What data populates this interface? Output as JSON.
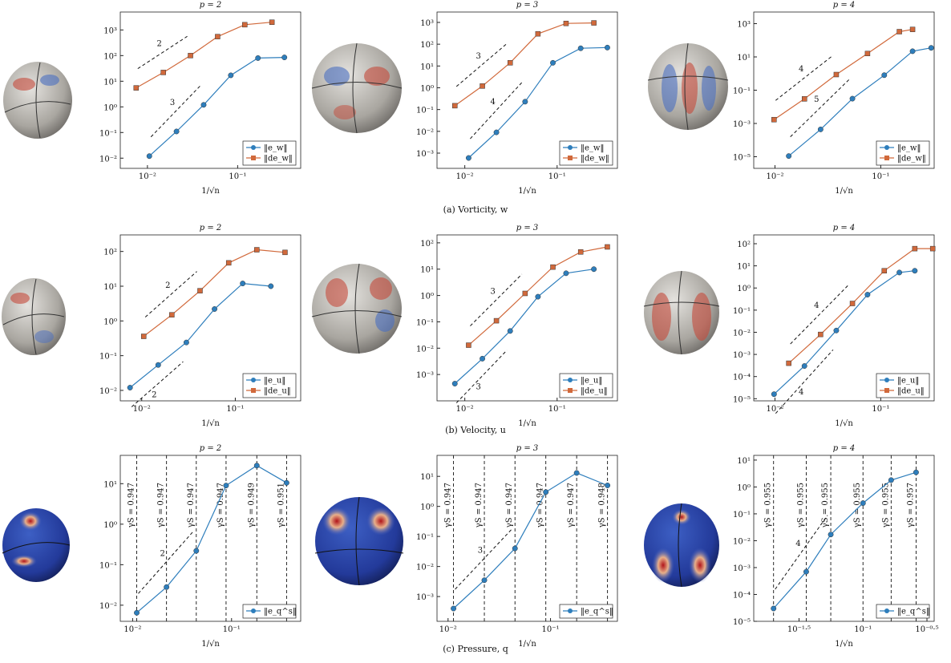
{
  "chart_data": [
    {
      "type": "line",
      "title": "p = 2",
      "x_label": "1/√n",
      "log_x": true,
      "log_y": true,
      "xlim": [
        0.005,
        0.5
      ],
      "xticks": [
        {
          "value": 0.01,
          "label": "10⁻²"
        },
        {
          "value": 0.1,
          "label": "10⁻¹"
        }
      ],
      "ylim": [
        0.004,
        5000
      ],
      "yticks": [
        {
          "value": 0.01,
          "label": "10⁻²"
        },
        {
          "value": 0.1,
          "label": "10⁻¹"
        },
        {
          "value": 1,
          "label": "10⁰"
        },
        {
          "value": 10,
          "label": "10¹"
        },
        {
          "value": 100,
          "label": "10²"
        },
        {
          "value": 1000,
          "label": "10³"
        }
      ],
      "series": [
        {
          "name": "‖e_w‖",
          "color": "#2e7ebc",
          "marker": "circle",
          "x": [
            0.0105,
            0.021,
            0.042,
            0.084,
            0.168,
            0.33
          ],
          "values": [
            0.012,
            0.11,
            1.2,
            17,
            80,
            85
          ]
        },
        {
          "name": "‖de_w‖",
          "color": "#d1693b",
          "marker": "square",
          "x": [
            0.0075,
            0.015,
            0.03,
            0.06,
            0.12,
            0.24
          ],
          "values": [
            5.5,
            22,
            100,
            550,
            1600,
            2000
          ]
        }
      ],
      "annotations": [
        "2",
        "3"
      ]
    },
    {
      "type": "line",
      "title": "p = 3",
      "x_label": "1/√n",
      "log_x": true,
      "log_y": true,
      "xlim": [
        0.005,
        0.45
      ],
      "xticks": [
        {
          "value": 0.01,
          "label": "10⁻²"
        },
        {
          "value": 0.1,
          "label": "10⁻¹"
        }
      ],
      "ylim": [
        0.0002,
        3000
      ],
      "yticks": [
        {
          "value": 0.001,
          "label": "10⁻³"
        },
        {
          "value": 0.01,
          "label": "10⁻²"
        },
        {
          "value": 0.1,
          "label": "10⁻¹"
        },
        {
          "value": 1,
          "label": "10⁰"
        },
        {
          "value": 10,
          "label": "10¹"
        },
        {
          "value": 100,
          "label": "10²"
        },
        {
          "value": 1000,
          "label": "10³"
        }
      ],
      "series": [
        {
          "name": "‖e_w‖",
          "color": "#2e7ebc",
          "marker": "circle",
          "x": [
            0.011,
            0.022,
            0.045,
            0.09,
            0.18,
            0.35
          ],
          "values": [
            0.0006,
            0.009,
            0.23,
            14,
            65,
            70
          ]
        },
        {
          "name": "‖de_w‖",
          "color": "#d1693b",
          "marker": "square",
          "x": [
            0.0078,
            0.0155,
            0.031,
            0.062,
            0.125,
            0.25
          ],
          "values": [
            0.15,
            1.2,
            14,
            300,
            900,
            950
          ]
        }
      ],
      "annotations": [
        "3",
        "4"
      ]
    },
    {
      "type": "line",
      "title": "p = 4",
      "x_label": "1/√n",
      "log_x": true,
      "log_y": true,
      "xlim": [
        0.0063,
        0.32
      ],
      "xticks": [
        {
          "value": 0.01,
          "label": "10⁻²"
        },
        {
          "value": 0.1,
          "label": "10⁻¹"
        }
      ],
      "ylim": [
        2e-06,
        5000
      ],
      "yticks": [
        {
          "value": 1e-05,
          "label": "10⁻⁵"
        },
        {
          "value": 0.001,
          "label": "10⁻³"
        },
        {
          "value": 0.1,
          "label": "10⁻¹"
        },
        {
          "value": 10,
          "label": "10¹"
        },
        {
          "value": 1000,
          "label": "10³"
        }
      ],
      "series": [
        {
          "name": "‖e_w‖",
          "color": "#2e7ebc",
          "marker": "circle",
          "x": [
            0.0135,
            0.027,
            0.054,
            0.108,
            0.2,
            0.3
          ],
          "values": [
            1.1e-05,
            0.00044,
            0.031,
            0.8,
            22,
            35
          ]
        },
        {
          "name": "‖de_w‖",
          "color": "#d1693b",
          "marker": "square",
          "x": [
            0.0098,
            0.019,
            0.038,
            0.075,
            0.15,
            0.2
          ],
          "values": [
            0.0017,
            0.03,
            0.87,
            16,
            330,
            450
          ]
        }
      ],
      "annotations": [
        "4",
        "5"
      ]
    },
    {
      "type": "line",
      "title": "p = 2",
      "x_label": "1/√n",
      "log_x": true,
      "log_y": true,
      "xlim": [
        0.0059,
        0.5
      ],
      "xticks": [
        {
          "value": 0.01,
          "label": "10⁻²"
        },
        {
          "value": 0.1,
          "label": "10⁻¹"
        }
      ],
      "ylim": [
        0.005,
        300
      ],
      "yticks": [
        {
          "value": 0.01,
          "label": "10⁻²"
        },
        {
          "value": 0.1,
          "label": "10⁻¹"
        },
        {
          "value": 1,
          "label": "10⁰"
        },
        {
          "value": 10,
          "label": "10¹"
        },
        {
          "value": 100,
          "label": "10²"
        }
      ],
      "series": [
        {
          "name": "‖e_u‖",
          "color": "#2e7ebc",
          "marker": "circle",
          "x": [
            0.0075,
            0.015,
            0.03,
            0.06,
            0.12,
            0.24
          ],
          "values": [
            0.012,
            0.054,
            0.24,
            2.2,
            12,
            10
          ]
        },
        {
          "name": "‖de_u‖",
          "color": "#d1693b",
          "marker": "square",
          "x": [
            0.0105,
            0.021,
            0.042,
            0.085,
            0.17,
            0.34
          ],
          "values": [
            0.36,
            1.5,
            7.4,
            47,
            112,
            94
          ]
        }
      ],
      "annotations": [
        "2",
        "2"
      ]
    },
    {
      "type": "line",
      "title": "p = 3",
      "x_label": "1/√n",
      "log_x": true,
      "log_y": true,
      "xlim": [
        0.005,
        0.45
      ],
      "xticks": [
        {
          "value": 0.01,
          "label": "10⁻²"
        },
        {
          "value": 0.1,
          "label": "10⁻¹"
        }
      ],
      "ylim": [
        0.0001,
        200
      ],
      "yticks": [
        {
          "value": 0.001,
          "label": "10⁻³"
        },
        {
          "value": 0.01,
          "label": "10⁻²"
        },
        {
          "value": 0.1,
          "label": "10⁻¹"
        },
        {
          "value": 1,
          "label": "10⁰"
        },
        {
          "value": 10,
          "label": "10¹"
        },
        {
          "value": 100,
          "label": "10²"
        }
      ],
      "series": [
        {
          "name": "‖e_u‖",
          "color": "#2e7ebc",
          "marker": "circle",
          "x": [
            0.0078,
            0.0155,
            0.031,
            0.062,
            0.125,
            0.25
          ],
          "values": [
            0.00045,
            0.004,
            0.045,
            0.9,
            7,
            10
          ]
        },
        {
          "name": "‖de_u‖",
          "color": "#d1693b",
          "marker": "square",
          "x": [
            0.011,
            0.022,
            0.045,
            0.09,
            0.18,
            0.35
          ],
          "values": [
            0.013,
            0.11,
            1.2,
            12,
            45,
            70
          ]
        }
      ],
      "annotations": [
        "3",
        "3"
      ]
    },
    {
      "type": "line",
      "title": "p = 4",
      "x_label": "1/√n",
      "log_x": true,
      "log_y": true,
      "xlim": [
        0.0063,
        0.32
      ],
      "xticks": [
        {
          "value": 0.01,
          "label": "10⁻²"
        },
        {
          "value": 0.1,
          "label": "10⁻¹"
        }
      ],
      "ylim": [
        8e-06,
        250
      ],
      "yticks": [
        {
          "value": 1e-05,
          "label": "10⁻⁵"
        },
        {
          "value": 0.0001,
          "label": "10⁻⁴"
        },
        {
          "value": 0.001,
          "label": "10⁻³"
        },
        {
          "value": 0.01,
          "label": "10⁻²"
        },
        {
          "value": 0.1,
          "label": "10⁻¹"
        },
        {
          "value": 1,
          "label": "10⁰"
        },
        {
          "value": 10,
          "label": "10¹"
        },
        {
          "value": 100,
          "label": "10²"
        }
      ],
      "series": [
        {
          "name": "‖e_u‖",
          "color": "#2e7ebc",
          "marker": "circle",
          "x": [
            0.0098,
            0.019,
            0.038,
            0.075,
            0.15,
            0.21
          ],
          "values": [
            1.6e-05,
            0.0003,
            0.012,
            0.5,
            5,
            6
          ]
        },
        {
          "name": "‖de_u‖",
          "color": "#d1693b",
          "marker": "square",
          "x": [
            0.0135,
            0.027,
            0.054,
            0.108,
            0.21,
            0.31
          ],
          "values": [
            0.0004,
            0.008,
            0.2,
            6,
            60,
            60
          ]
        }
      ],
      "annotations": [
        "4",
        "4"
      ]
    },
    {
      "type": "line",
      "title": "p = 2",
      "x_label": "1/√n",
      "log_x": true,
      "log_y": true,
      "xlim": [
        0.0075,
        0.5
      ],
      "xticks": [
        {
          "value": 0.01,
          "label": "10⁻²"
        },
        {
          "value": 0.1,
          "label": "10⁻¹"
        }
      ],
      "ylim": [
        0.004,
        50
      ],
      "yticks": [
        {
          "value": 0.01,
          "label": "10⁻²"
        },
        {
          "value": 0.1,
          "label": "10⁻¹"
        },
        {
          "value": 1,
          "label": "10⁰"
        },
        {
          "value": 10,
          "label": "10¹"
        }
      ],
      "series": [
        {
          "name": "‖e_q^s‖",
          "color": "#2e7ebc",
          "marker": "circle",
          "x": [
            0.011,
            0.022,
            0.044,
            0.088,
            0.18,
            0.36
          ],
          "values": [
            0.0065,
            0.028,
            0.22,
            9,
            28,
            10.5
          ]
        }
      ],
      "vlines": [
        {
          "value": 0.011,
          "label": "γS = 0.947"
        },
        {
          "value": 0.022,
          "label": "γS = 0.947"
        },
        {
          "value": 0.044,
          "label": "γS = 0.947"
        },
        {
          "value": 0.088,
          "label": "γS = 0.947"
        },
        {
          "value": 0.18,
          "label": "γS = 0.949"
        },
        {
          "value": 0.36,
          "label": "γS = 0.951"
        }
      ],
      "annotations": [
        "2"
      ]
    },
    {
      "type": "line",
      "title": "p = 3",
      "x_label": "1/√n",
      "log_x": true,
      "log_y": true,
      "xlim": [
        0.0078,
        0.45
      ],
      "xticks": [
        {
          "value": 0.01,
          "label": "10⁻²"
        },
        {
          "value": 0.1,
          "label": "10⁻¹"
        }
      ],
      "ylim": [
        0.00015,
        50
      ],
      "yticks": [
        {
          "value": 0.001,
          "label": "10⁻³"
        },
        {
          "value": 0.01,
          "label": "10⁻²"
        },
        {
          "value": 0.1,
          "label": "10⁻¹"
        },
        {
          "value": 1,
          "label": "10⁰"
        },
        {
          "value": 10,
          "label": "10¹"
        }
      ],
      "series": [
        {
          "name": "‖e_q^s‖",
          "color": "#2e7ebc",
          "marker": "circle",
          "x": [
            0.0113,
            0.0226,
            0.045,
            0.09,
            0.18,
            0.36
          ],
          "values": [
            0.0004,
            0.0035,
            0.04,
            3,
            13,
            5
          ]
        }
      ],
      "vlines": [
        {
          "value": 0.0113,
          "label": "γS = 0.947"
        },
        {
          "value": 0.0226,
          "label": "γS = 0.947"
        },
        {
          "value": 0.045,
          "label": "γS = 0.947"
        },
        {
          "value": 0.09,
          "label": "γS = 0.947"
        },
        {
          "value": 0.18,
          "label": "γS = 0.947"
        },
        {
          "value": 0.36,
          "label": "γS = 0.948"
        }
      ],
      "annotations": [
        "3"
      ]
    },
    {
      "type": "line",
      "title": "p = 4",
      "x_label": "1/√n",
      "log_x": true,
      "log_y": true,
      "xlim": [
        0.014,
        0.36
      ],
      "xticks": [
        {
          "value": 0.0316227766,
          "label": "10⁻¹·⁵"
        },
        {
          "value": 0.1,
          "label": "10⁻¹"
        },
        {
          "value": 0.316227766,
          "label": "10⁻⁰·⁵"
        }
      ],
      "ylim": [
        1e-05,
        15
      ],
      "yticks": [
        {
          "value": 1e-05,
          "label": "10⁻⁵"
        },
        {
          "value": 0.0001,
          "label": "10⁻⁴"
        },
        {
          "value": 0.001,
          "label": "10⁻³"
        },
        {
          "value": 0.01,
          "label": "10⁻²"
        },
        {
          "value": 0.1,
          "label": "10⁻¹"
        },
        {
          "value": 1,
          "label": "10⁰"
        },
        {
          "value": 10,
          "label": "10¹"
        }
      ],
      "series": [
        {
          "name": "‖e_q^s‖",
          "color": "#2e7ebc",
          "marker": "circle",
          "x": [
            0.02,
            0.036,
            0.056,
            0.1,
            0.166,
            0.26
          ],
          "values": [
            3e-05,
            0.0007,
            0.017,
            0.25,
            1.8,
            3.5
          ]
        }
      ],
      "vlines": [
        {
          "value": 0.02,
          "label": "γS = 0.955"
        },
        {
          "value": 0.036,
          "label": "γS = 0.955"
        },
        {
          "value": 0.056,
          "label": "γS = 0.955"
        },
        {
          "value": 0.1,
          "label": "γS = 0.955"
        },
        {
          "value": 0.166,
          "label": "γS = 0.955"
        },
        {
          "value": 0.26,
          "label": "γS = 0.957"
        }
      ],
      "annotations": [
        "4"
      ]
    }
  ],
  "captions": [
    "(a) Vorticity, w",
    "(b) Velocity, u",
    "(c) Pressure, q"
  ]
}
